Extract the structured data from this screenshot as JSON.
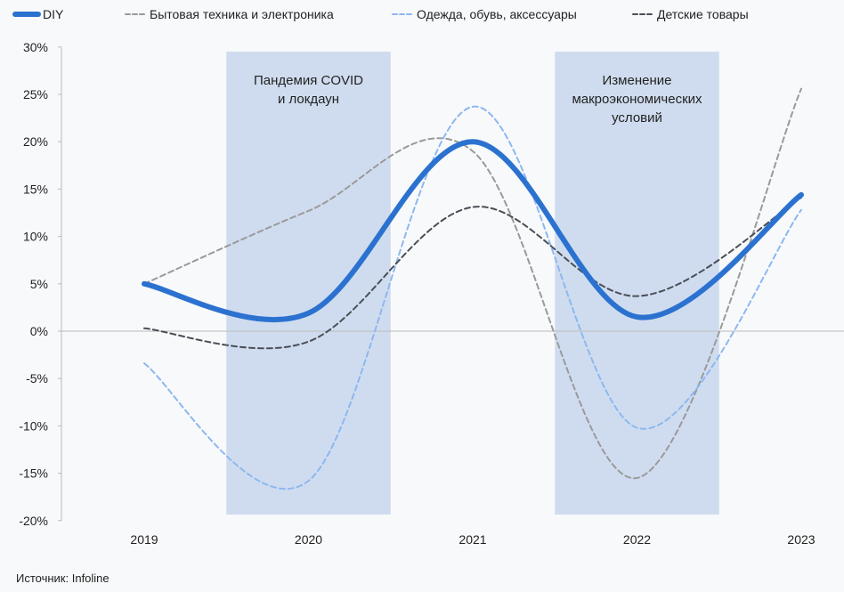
{
  "chart_data": {
    "type": "line",
    "title": "",
    "xlabel": "",
    "ylabel": "",
    "x": [
      "2019",
      "2020",
      "2021",
      "2022",
      "2023"
    ],
    "ylim": [
      -20,
      30
    ],
    "yticks": [
      30,
      25,
      20,
      15,
      10,
      5,
      0,
      -5,
      -10,
      -15,
      -20
    ],
    "ytick_labels": [
      "30%",
      "25%",
      "20%",
      "15%",
      "10%",
      "5%",
      "0%",
      "-5%",
      "-10%",
      "-15%",
      "-20%"
    ],
    "legend_position": "top",
    "series": [
      {
        "name": "DIY",
        "values": [
          5.0,
          1.9,
          20.0,
          1.5,
          14.4
        ],
        "color": "#2b72d0",
        "style": "solid"
      },
      {
        "name": "Бытовая техника и электроника",
        "values": [
          5.0,
          12.7,
          19.0,
          -15.5,
          25.6
        ],
        "color": "#9a9a9a",
        "style": "dashed"
      },
      {
        "name": "Одежда, обувь, аксессуары",
        "values": [
          -3.4,
          -15.8,
          23.7,
          -10.2,
          12.8
        ],
        "color": "#8db8ef",
        "style": "dashed"
      },
      {
        "name": "Детские товары",
        "values": [
          0.3,
          -1.1,
          13.1,
          3.7,
          14.1
        ],
        "color": "#4a4f57",
        "style": "dashed"
      }
    ],
    "annotations": [
      {
        "x_range": [
          2019.5,
          2020.5
        ],
        "lines": [
          "Пандемия COVID",
          "и локдаун"
        ]
      },
      {
        "x_range": [
          2021.5,
          2022.5
        ],
        "lines": [
          "Изменение",
          "макроэкономических",
          "условий"
        ]
      }
    ],
    "band_color": "#cfdcef"
  },
  "source": "Источник: Infoline"
}
